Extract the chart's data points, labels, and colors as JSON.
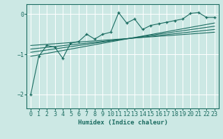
{
  "xlabel": "Humidex (Indice chaleur)",
  "bg_color": "#cce8e4",
  "grid_color": "#ffffff",
  "line_color": "#1a6b60",
  "xlim": [
    -0.5,
    23.5
  ],
  "ylim": [
    -2.35,
    0.25
  ],
  "yticks": [
    0,
    -1,
    -2
  ],
  "xticks": [
    0,
    1,
    2,
    3,
    4,
    5,
    6,
    7,
    8,
    9,
    10,
    11,
    12,
    13,
    14,
    15,
    16,
    17,
    18,
    19,
    20,
    21,
    22,
    23
  ],
  "scatter_x": [
    0,
    1,
    2,
    3,
    4,
    5,
    6,
    7,
    8,
    9,
    10,
    11,
    12,
    13,
    14,
    15,
    16,
    17,
    18,
    19,
    20,
    21,
    22,
    23
  ],
  "scatter_y": [
    -2.0,
    -1.05,
    -0.78,
    -0.82,
    -1.1,
    -0.72,
    -0.68,
    -0.5,
    -0.62,
    -0.5,
    -0.45,
    0.04,
    -0.22,
    -0.12,
    -0.38,
    -0.28,
    -0.24,
    -0.2,
    -0.16,
    -0.12,
    0.02,
    0.04,
    -0.08,
    -0.08
  ],
  "reg_lines": [
    {
      "x": [
        0,
        23
      ],
      "y": [
        -1.05,
        -0.22
      ]
    },
    {
      "x": [
        0,
        23
      ],
      "y": [
        -0.95,
        -0.3
      ]
    },
    {
      "x": [
        0,
        23
      ],
      "y": [
        -0.87,
        -0.38
      ]
    },
    {
      "x": [
        0,
        23
      ],
      "y": [
        -0.78,
        -0.45
      ]
    }
  ]
}
